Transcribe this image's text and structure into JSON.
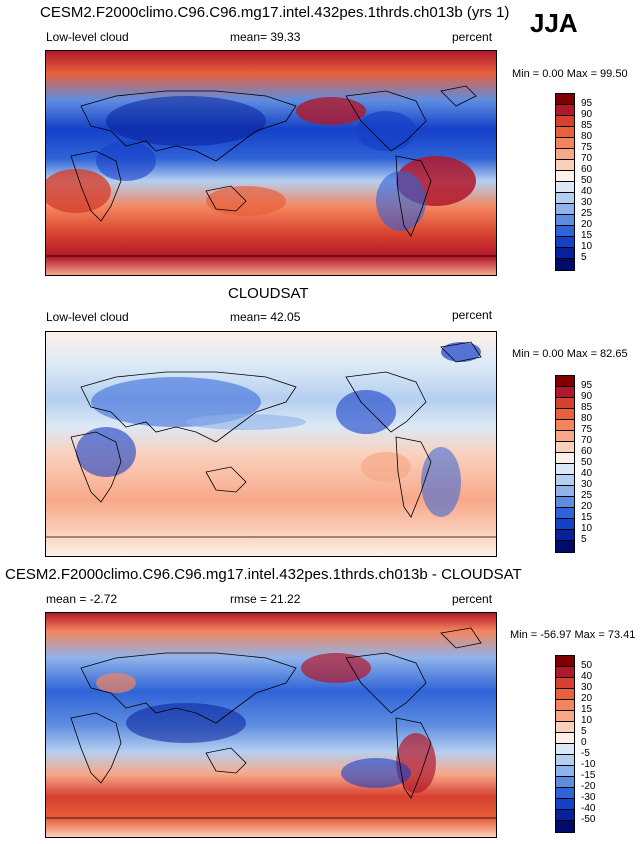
{
  "season": "JJA",
  "panels": [
    {
      "title": "CESM2.F2000climo.C96.C96.mg17.intel.432pes.1thrds.ch013b (yrs 1)",
      "left_label": "Low-level cloud",
      "center_label": "mean=  39.33",
      "units": "percent",
      "minmax": "Min =   0.00 Max =  99.50",
      "colorbar": [
        "95",
        "90",
        "85",
        "80",
        "75",
        "70",
        "60",
        "50",
        "40",
        "30",
        "25",
        "20",
        "15",
        "10",
        "5"
      ],
      "palette": [
        "#7f0000",
        "#b2182b",
        "#d6402e",
        "#e8603c",
        "#f4845c",
        "#f7a889",
        "#fbd0bb",
        "#fdf0e8",
        "#dbe9f6",
        "#b5cff0",
        "#8fb3ea",
        "#5e8de0",
        "#2f63d8",
        "#1540c8",
        "#08209a",
        "#000b6b"
      ]
    },
    {
      "title": "CLOUDSAT",
      "left_label": "Low-level cloud",
      "center_label": "mean=  42.05",
      "units": "percent",
      "minmax": "Min =   0.00 Max =  82.65",
      "colorbar": [
        "95",
        "90",
        "85",
        "80",
        "75",
        "70",
        "60",
        "50",
        "40",
        "30",
        "25",
        "20",
        "15",
        "10",
        "5"
      ],
      "palette": [
        "#7f0000",
        "#b2182b",
        "#d6402e",
        "#e8603c",
        "#f4845c",
        "#f7a889",
        "#fbd0bb",
        "#fdf0e8",
        "#dbe9f6",
        "#b5cff0",
        "#8fb3ea",
        "#5e8de0",
        "#2f63d8",
        "#1540c8",
        "#08209a",
        "#000b6b"
      ]
    },
    {
      "title": "CESM2.F2000climo.C96.C96.mg17.intel.432pes.1thrds.ch013b - CLOUDSAT",
      "left_label": "mean =  -2.72",
      "center_label": "rmse =  21.22",
      "units": "percent",
      "minmax": "Min = -56.97 Max =  73.41",
      "colorbar": [
        "50",
        "40",
        "30",
        "20",
        "15",
        "10",
        "5",
        "0",
        "-5",
        "-10",
        "-15",
        "-20",
        "-30",
        "-40",
        "-50"
      ],
      "palette": [
        "#7f0000",
        "#b2182b",
        "#d6402e",
        "#e8603c",
        "#f4845c",
        "#f7a889",
        "#fbd0bb",
        "#fdf0e8",
        "#dbe9f6",
        "#b5cff0",
        "#8fb3ea",
        "#5e8de0",
        "#2f63d8",
        "#1540c8",
        "#08209a",
        "#000b6b"
      ]
    }
  ]
}
